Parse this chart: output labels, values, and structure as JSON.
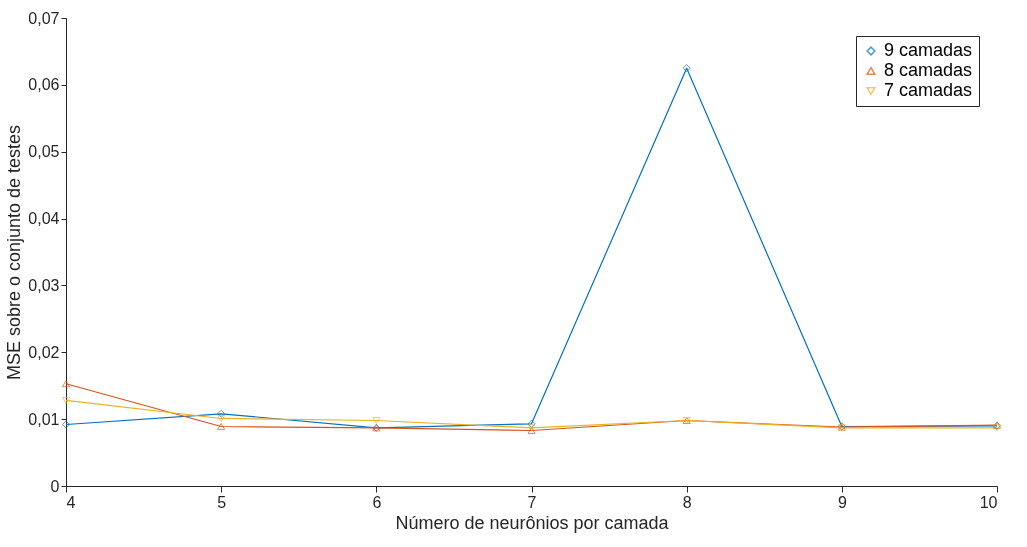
{
  "chart_data": {
    "type": "line",
    "xlabel": "Número de neurônios por camada",
    "ylabel": "MSE sobre o conjunto de testes",
    "x": [
      4,
      5,
      6,
      7,
      8,
      9,
      10
    ],
    "series": [
      {
        "name": "9 camadas",
        "color": "#0072bd",
        "marker": "diamond",
        "values": [
          0.0092,
          0.0108,
          0.0087,
          0.0093,
          0.0625,
          0.0089,
          0.009
        ]
      },
      {
        "name": "8 camadas",
        "color": "#d95319",
        "marker": "triangle-up",
        "values": [
          0.0153,
          0.0089,
          0.0087,
          0.0083,
          0.0098,
          0.0088,
          0.0091
        ]
      },
      {
        "name": "7 camadas",
        "color": "#edb120",
        "marker": "triangle-down",
        "values": [
          0.0128,
          0.0101,
          0.0098,
          0.0087,
          0.0098,
          0.0087,
          0.0087
        ]
      }
    ],
    "xlim": [
      4,
      10
    ],
    "xticks": [
      4,
      5,
      6,
      7,
      8,
      9,
      10
    ],
    "ylim": [
      0,
      0.07
    ],
    "yticks": [
      0,
      {
        "value": 0.01,
        "label": "0,01"
      },
      {
        "value": 0.02,
        "label": "0,02"
      },
      {
        "value": 0.03,
        "label": "0,03"
      },
      {
        "value": 0.04,
        "label": "0,04"
      },
      {
        "value": 0.05,
        "label": "0,05"
      },
      {
        "value": 0.06,
        "label": "0,06"
      },
      {
        "value": 0.07,
        "label": "0,07"
      }
    ],
    "grid": false,
    "legend": "top right",
    "line_style": "solid"
  }
}
